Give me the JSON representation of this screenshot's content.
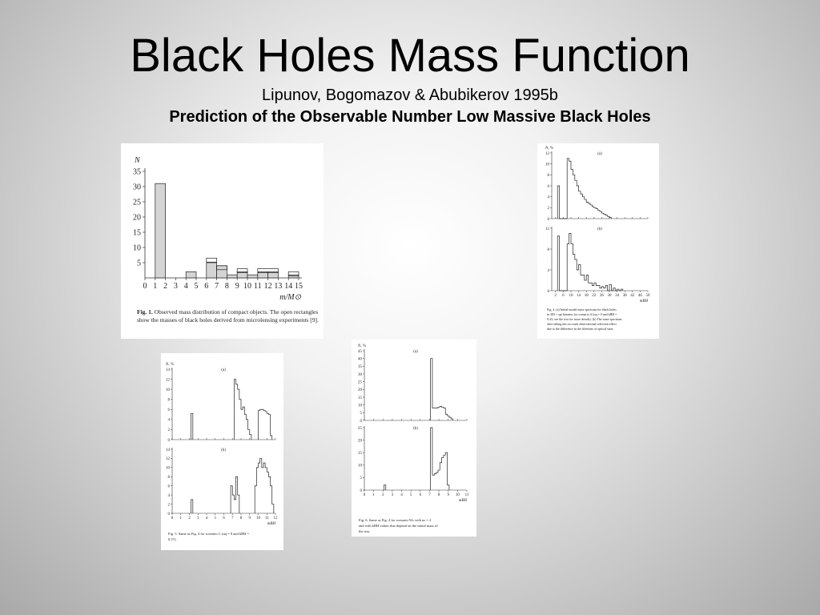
{
  "slide": {
    "title": "Black Holes Mass Function",
    "subtitle": "Lipunov, Bogomazov & Abubikerov 1995b",
    "subtitle_bold": "Prediction of the Observable Number Low Massive Black Holes"
  },
  "fig1": {
    "caption_label": "Fig. 1.",
    "caption_lines": [
      "Observed mass distribution of compact objects.",
      "The open rectangles show the masses of black holes",
      "derived from microlensing experiments [9]."
    ]
  },
  "fig4": {
    "caption_lines": [
      "Fig. 4. (a) Initial model mass spectrum for black holes",
      "in 383 + spt binaries for scenario A (αq = 0 and kBH =",
      "0.43; see the text for more details). (b) The same spectrum",
      "after taking into account observational selection effect",
      "due to the difference in the lifetimes of optical stars."
    ]
  },
  "fig5": {
    "caption_lines": [
      "Fig. 5. Same as Fig. 4 for scenario C (αq = 0 and kBH =",
      "0.57)."
    ]
  },
  "fig6": {
    "caption_lines": [
      "Fig. 6. Same as Fig. 4 for scenario Wε with nε = 2",
      "and with kBH values that depend on the initial mass of",
      "the star."
    ]
  },
  "chart_data": [
    {
      "id": "fig1",
      "type": "bar",
      "ylabel": "N",
      "xlabel": "m/M⊙",
      "xlim": [
        0,
        15
      ],
      "ylim": [
        0,
        35
      ],
      "xticks": [
        0,
        1,
        2,
        3,
        4,
        5,
        6,
        7,
        8,
        9,
        10,
        11,
        12,
        13,
        14,
        15
      ],
      "yticks": [
        5,
        10,
        15,
        20,
        25,
        30,
        35
      ],
      "series": [
        {
          "bins": [
            [
              1,
              2,
              31
            ],
            [
              4,
              5,
              2
            ],
            [
              6,
              7,
              5
            ],
            [
              7,
              8,
              4
            ],
            [
              8,
              9,
              1
            ],
            [
              9,
              10,
              2
            ],
            [
              10,
              11,
              1
            ],
            [
              11,
              12,
              2
            ],
            [
              12,
              13,
              2
            ],
            [
              14,
              15,
              1
            ]
          ]
        }
      ],
      "open_rectangles": [
        [
          6,
          7,
          6.5
        ],
        [
          7,
          8,
          4
        ],
        [
          9,
          10,
          3
        ],
        [
          11,
          13,
          3
        ],
        [
          14,
          15,
          2
        ]
      ]
    },
    {
      "id": "fig4a",
      "type": "bar",
      "panel": "(a)",
      "ylabel": "N, %",
      "ylim": [
        0,
        12
      ],
      "yticks": [
        0,
        2,
        4,
        6,
        8,
        10,
        12
      ],
      "xticks": [
        2,
        6,
        10,
        14,
        18,
        22,
        26,
        30,
        34,
        38,
        42,
        46,
        50
      ],
      "x": [
        3,
        4,
        5,
        6,
        7,
        8,
        9,
        10,
        11,
        12,
        13,
        14,
        15,
        16,
        17,
        18,
        19,
        20,
        21,
        22,
        23,
        24,
        25,
        26,
        27,
        28,
        29,
        30
      ],
      "values": [
        6,
        0,
        0,
        0,
        0,
        11,
        10.5,
        9,
        8,
        7,
        6,
        5,
        4.5,
        4,
        3.5,
        3,
        2.8,
        2.5,
        2.2,
        2,
        1.8,
        1.5,
        1.3,
        1,
        0.8,
        0.6,
        0.4,
        0.2
      ]
    },
    {
      "id": "fig4b",
      "type": "bar",
      "panel": "(b)",
      "ylim": [
        0,
        12
      ],
      "yticks": [
        0,
        4,
        8,
        12
      ],
      "xticks": [
        2,
        6,
        10,
        14,
        18,
        22,
        26,
        30,
        34,
        38,
        42,
        46,
        50
      ],
      "xlabel": "mBH",
      "x": [
        3,
        4,
        5,
        6,
        7,
        8,
        9,
        10,
        11,
        12,
        13,
        14,
        15,
        16,
        17,
        18,
        19,
        20,
        21,
        22,
        23,
        24,
        25,
        26,
        27,
        28,
        29,
        30,
        31,
        32,
        33,
        34,
        35,
        36
      ],
      "values": [
        10.5,
        0,
        0,
        0,
        0,
        9,
        11,
        9,
        7,
        6,
        4,
        5,
        3,
        3,
        2,
        3,
        1.5,
        1.5,
        1,
        1.5,
        1,
        1,
        0.5,
        0.8,
        0.5,
        1,
        0,
        1.2,
        0,
        0.5,
        0,
        0.3,
        0,
        0.3
      ]
    },
    {
      "id": "fig5a",
      "type": "bar",
      "panel": "(a)",
      "ylabel": "N, %",
      "ylim": [
        0,
        14
      ],
      "yticks": [
        0,
        2,
        4,
        6,
        8,
        10,
        12,
        14
      ],
      "xticks": [
        0,
        1,
        2,
        3,
        4,
        5,
        6,
        7,
        8,
        9,
        10,
        11,
        12
      ],
      "x": [
        2.2,
        7.2,
        7.4,
        7.6,
        7.8,
        8.0,
        8.2,
        8.4,
        8.6,
        8.8,
        9.0,
        10.0,
        10.2,
        10.4,
        10.6,
        10.8,
        11.0,
        11.2,
        11.4
      ],
      "values": [
        5.2,
        12,
        11,
        10,
        8,
        6,
        6.5,
        5,
        4,
        2,
        1,
        5.8,
        6,
        6,
        5.8,
        5.6,
        5.2,
        5,
        0.8
      ]
    },
    {
      "id": "fig5b",
      "type": "bar",
      "panel": "(b)",
      "ylim": [
        0,
        14
      ],
      "yticks": [
        0,
        2,
        4,
        6,
        8,
        10,
        12,
        14
      ],
      "xticks": [
        0,
        1,
        2,
        3,
        4,
        5,
        6,
        7,
        8,
        9,
        10,
        11,
        12
      ],
      "xlabel": "mBH",
      "x": [
        2.2,
        6.8,
        7.0,
        7.2,
        7.4,
        7.6,
        9.6,
        9.8,
        10.0,
        10.2,
        10.4,
        10.6,
        10.8,
        11.0,
        11.2,
        11.4,
        11.6
      ],
      "values": [
        3,
        6,
        4,
        3,
        8,
        4,
        6,
        10,
        11,
        12,
        10,
        11,
        10,
        9,
        8,
        6,
        2
      ]
    },
    {
      "id": "fig6a",
      "type": "bar",
      "panel": "(a)",
      "ylabel": "N, %",
      "ylim": [
        0,
        45
      ],
      "yticks": [
        0,
        5,
        10,
        15,
        20,
        25,
        30,
        35,
        40,
        45
      ],
      "xticks": [
        0,
        1,
        2,
        3,
        4,
        5,
        6,
        7,
        8,
        9,
        10,
        11
      ],
      "x": [
        7.1,
        7.3,
        7.5,
        7.7,
        7.9,
        8.1,
        8.3,
        8.5,
        8.7,
        8.9,
        9.1,
        9.3
      ],
      "values": [
        40,
        8,
        8,
        8,
        8.5,
        9,
        8.5,
        8,
        4,
        3,
        2,
        1
      ]
    },
    {
      "id": "fig6b",
      "type": "bar",
      "panel": "(b)",
      "ylim": [
        0,
        25
      ],
      "yticks": [
        0,
        5,
        10,
        15,
        20,
        25
      ],
      "xticks": [
        0,
        1,
        2,
        3,
        4,
        5,
        6,
        7,
        8,
        9,
        10,
        11
      ],
      "xlabel": "mBH",
      "x": [
        2.1,
        7.1,
        7.3,
        7.5,
        7.7,
        7.9,
        8.1,
        8.3,
        8.5,
        8.7,
        8.9
      ],
      "values": [
        2,
        25,
        6,
        6.5,
        7,
        8,
        11,
        13,
        14,
        15,
        2
      ]
    }
  ]
}
